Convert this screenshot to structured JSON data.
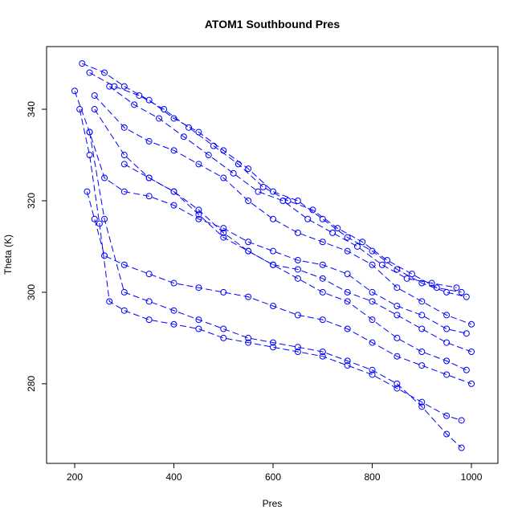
{
  "chart_data": {
    "type": "line",
    "title": "ATOM1 Southbound Pres",
    "x_label": "Pres",
    "y_label": "Theta (K)",
    "color": "#0000ff",
    "markers": "open-circle",
    "grid": false,
    "xlim": [
      143.3,
      1053.4
    ],
    "xticks": [
      200,
      400,
      600,
      800,
      1000
    ],
    "ylim": [
      262.6,
      353.7
    ],
    "yticks": [
      280,
      300,
      320,
      340
    ],
    "series": [
      {
        "x": [
          215,
          260,
          300,
          350,
          400,
          450,
          500,
          550,
          600,
          650,
          700,
          750,
          800,
          850,
          900,
          950,
          990
        ],
        "values": [
          350,
          348,
          345,
          342,
          338,
          335,
          331,
          327,
          322,
          320,
          316,
          312,
          309,
          305,
          302,
          300,
          299
        ]
      },
      {
        "x": [
          230,
          280,
          330,
          380,
          430,
          480,
          530,
          580,
          630,
          680,
          730,
          780,
          830,
          880,
          930,
          980
        ],
        "values": [
          348,
          345,
          343,
          340,
          336,
          332,
          328,
          323,
          320,
          318,
          314,
          311,
          307,
          304,
          301,
          300
        ]
      },
      {
        "x": [
          240,
          300,
          350,
          400,
          450,
          500,
          550,
          600,
          650,
          700,
          750,
          800,
          850,
          900,
          950,
          1000
        ],
        "values": [
          343,
          336,
          333,
          331,
          328,
          325,
          320,
          316,
          313,
          311,
          309,
          306,
          301,
          298,
          295,
          293
        ]
      },
      {
        "x": [
          200,
          230,
          260,
          300,
          350,
          400,
          450,
          500,
          550,
          600,
          650,
          700,
          750,
          800,
          850,
          900,
          950,
          990
        ],
        "values": [
          344,
          335,
          325,
          322,
          321,
          319,
          316,
          314,
          311,
          309,
          307,
          306,
          304,
          300,
          297,
          295,
          292,
          291
        ]
      },
      {
        "x": [
          225,
          240,
          260,
          300,
          350,
          400,
          450,
          500,
          550,
          600,
          650,
          700,
          750,
          800,
          850,
          900,
          950,
          1000
        ],
        "values": [
          322,
          316,
          308,
          306,
          304,
          302,
          301,
          300,
          299,
          297,
          295,
          294,
          292,
          289,
          286,
          284,
          282,
          280
        ]
      },
      {
        "x": [
          210,
          230,
          250,
          270,
          300,
          350,
          400,
          450,
          500,
          550,
          600,
          650,
          700,
          750,
          800,
          850,
          900,
          950,
          980
        ],
        "values": [
          340,
          330,
          315,
          298,
          296,
          294,
          293,
          292,
          290,
          289,
          288,
          287,
          286,
          284,
          282,
          279,
          276,
          273,
          272
        ]
      },
      {
        "x": [
          230,
          260,
          300,
          350,
          400,
          450,
          500,
          550,
          600,
          650,
          700,
          750,
          800,
          850,
          900,
          950,
          980
        ],
        "values": [
          335,
          316,
          300,
          298,
          296,
          294,
          292,
          290,
          289,
          288,
          287,
          285,
          283,
          280,
          275,
          269,
          266
        ]
      },
      {
        "x": [
          240,
          300,
          350,
          400,
          450,
          500,
          550,
          600,
          650,
          700,
          750,
          800,
          850,
          900,
          950,
          1000
        ],
        "values": [
          340,
          330,
          325,
          322,
          317,
          312,
          309,
          306,
          305,
          303,
          300,
          298,
          295,
          292,
          289,
          287
        ]
      },
      {
        "x": [
          270,
          320,
          370,
          420,
          470,
          520,
          570,
          620,
          670,
          720,
          770,
          820,
          870,
          920,
          970
        ],
        "values": [
          345,
          341,
          338,
          334,
          330,
          326,
          322,
          320,
          316,
          313,
          310,
          306,
          303,
          302,
          301
        ]
      },
      {
        "x": [
          300,
          350,
          400,
          450,
          500,
          550,
          600,
          650,
          700,
          750,
          800,
          850,
          900,
          950,
          990
        ],
        "values": [
          328,
          325,
          322,
          318,
          313,
          309,
          306,
          303,
          300,
          298,
          294,
          290,
          287,
          285,
          283
        ]
      }
    ]
  }
}
